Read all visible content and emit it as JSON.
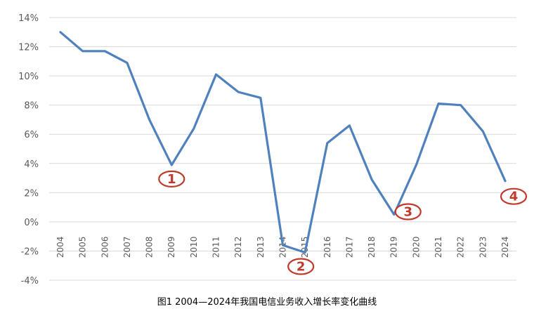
{
  "chart_data": {
    "type": "line",
    "title": "图1 2004—2024年我国电信业务收入增长率变化曲线",
    "x": [
      "2004",
      "2005",
      "2006",
      "2007",
      "2008",
      "2009",
      "2010",
      "2011",
      "2012",
      "2013",
      "2014",
      "2015",
      "2016",
      "2017",
      "2018",
      "2019",
      "2020",
      "2021",
      "2022",
      "2023",
      "2024"
    ],
    "series": [
      {
        "values": [
          13.0,
          11.7,
          11.7,
          10.9,
          7.0,
          3.9,
          6.4,
          10.1,
          8.9,
          8.5,
          -1.6,
          -2.1,
          5.4,
          6.6,
          2.9,
          0.5,
          3.9,
          8.1,
          8.0,
          6.2,
          2.8
        ]
      }
    ],
    "ylim": [
      -4,
      14
    ],
    "yticks": [
      -4,
      -2,
      0,
      2,
      4,
      6,
      8,
      10,
      12,
      14
    ],
    "ytick_labels": [
      "-4%",
      "-2%",
      "0%",
      "2%",
      "4%",
      "6%",
      "8%",
      "10%",
      "12%",
      "14%"
    ],
    "grid": true,
    "annotations": [
      {
        "label": "1",
        "near_x": "2009"
      },
      {
        "label": "2",
        "near_x": "2015"
      },
      {
        "label": "3",
        "near_x": "2019"
      },
      {
        "label": "4",
        "near_x": "2024"
      }
    ],
    "color": "#4f81bd",
    "annotation_color": "#c0392b"
  }
}
